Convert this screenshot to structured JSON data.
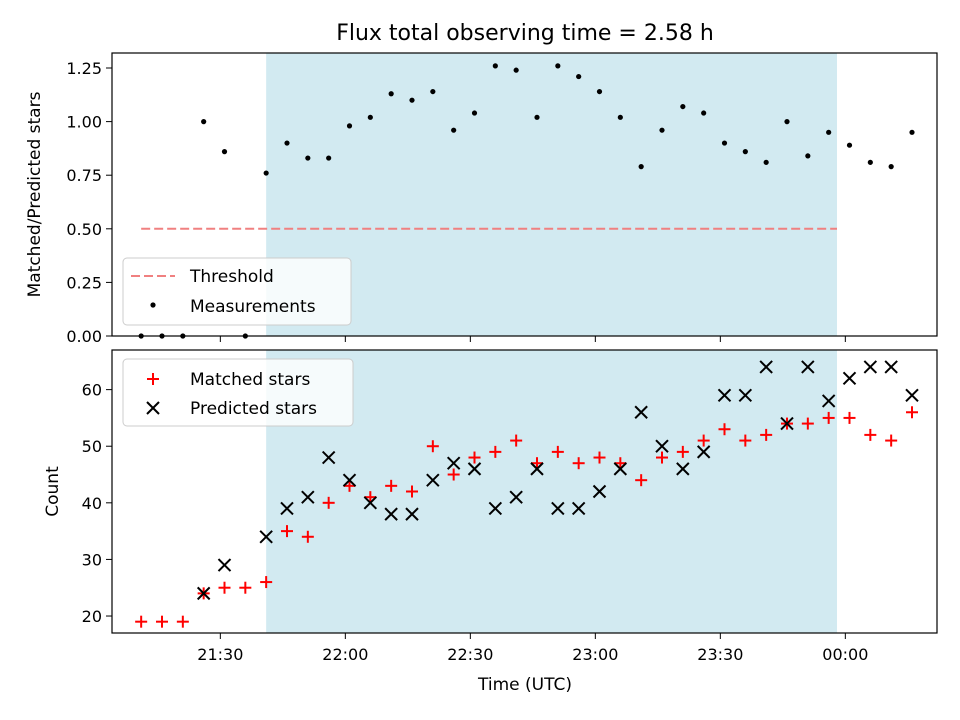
{
  "figure_title": "Flux total observing time = 2.58 h",
  "chart_data": [
    {
      "type": "scatter",
      "title": "Flux total observing time = 2.58 h",
      "xlabel": "",
      "ylabel": "Matched/Predicted stars",
      "ylim": [
        0,
        1.32
      ],
      "yticks": [
        "0.00",
        "0.25",
        "0.50",
        "0.75",
        "1.00",
        "1.25"
      ],
      "xtick_labels_shown": false,
      "shaded_interval": [
        "21:41",
        "23:58"
      ],
      "shade_color": "#add8e6",
      "legend_position": "lower-left",
      "threshold": {
        "name": "Threshold",
        "value": 0.5,
        "x_range": [
          "21:11",
          "23:58"
        ],
        "color": "#f08080",
        "style": "dashed"
      },
      "series": [
        {
          "name": "Measurements",
          "marker": "dot",
          "color": "#000000",
          "points": [
            [
              "21:11",
              0.0
            ],
            [
              "21:16",
              0.0
            ],
            [
              "21:21",
              0.0
            ],
            [
              "21:26",
              1.0
            ],
            [
              "21:31",
              0.86
            ],
            [
              "21:36",
              0.0
            ],
            [
              "21:41",
              0.76
            ],
            [
              "21:46",
              0.9
            ],
            [
              "21:51",
              0.83
            ],
            [
              "21:56",
              0.83
            ],
            [
              "22:01",
              0.98
            ],
            [
              "22:06",
              1.02
            ],
            [
              "22:11",
              1.13
            ],
            [
              "22:16",
              1.1
            ],
            [
              "22:21",
              1.14
            ],
            [
              "22:26",
              0.96
            ],
            [
              "22:31",
              1.04
            ],
            [
              "22:36",
              1.26
            ],
            [
              "22:41",
              1.24
            ],
            [
              "22:46",
              1.02
            ],
            [
              "22:51",
              1.26
            ],
            [
              "22:56",
              1.21
            ],
            [
              "23:01",
              1.14
            ],
            [
              "23:06",
              1.02
            ],
            [
              "23:11",
              0.79
            ],
            [
              "23:16",
              0.96
            ],
            [
              "23:21",
              1.07
            ],
            [
              "23:26",
              1.04
            ],
            [
              "23:31",
              0.9
            ],
            [
              "23:36",
              0.86
            ],
            [
              "23:41",
              0.81
            ],
            [
              "23:46",
              1.0
            ],
            [
              "23:51",
              0.84
            ],
            [
              "23:56",
              0.95
            ],
            [
              "00:01",
              0.89
            ],
            [
              "00:06",
              0.81
            ],
            [
              "00:11",
              0.79
            ],
            [
              "00:16",
              0.95
            ]
          ]
        }
      ]
    },
    {
      "type": "scatter",
      "xlabel": "Time (UTC)",
      "ylabel": "Count",
      "ylim": [
        17,
        67
      ],
      "yticks": [
        "20",
        "30",
        "40",
        "50",
        "60"
      ],
      "xticks": [
        "21:30",
        "22:00",
        "22:30",
        "23:00",
        "23:30",
        "00:00"
      ],
      "shaded_interval": [
        "21:41",
        "23:58"
      ],
      "shade_color": "#add8e6",
      "legend_position": "top-left",
      "series": [
        {
          "name": "Matched stars",
          "marker": "plus",
          "color": "#ff0000",
          "points": [
            [
              "21:11",
              19
            ],
            [
              "21:16",
              19
            ],
            [
              "21:21",
              19
            ],
            [
              "21:26",
              24
            ],
            [
              "21:31",
              25
            ],
            [
              "21:36",
              25
            ],
            [
              "21:41",
              26
            ],
            [
              "21:46",
              35
            ],
            [
              "21:51",
              34
            ],
            [
              "21:56",
              40
            ],
            [
              "22:01",
              43
            ],
            [
              "22:06",
              41
            ],
            [
              "22:11",
              43
            ],
            [
              "22:16",
              42
            ],
            [
              "22:21",
              50
            ],
            [
              "22:26",
              45
            ],
            [
              "22:31",
              48
            ],
            [
              "22:36",
              49
            ],
            [
              "22:41",
              51
            ],
            [
              "22:46",
              47
            ],
            [
              "22:51",
              49
            ],
            [
              "22:56",
              47
            ],
            [
              "23:01",
              48
            ],
            [
              "23:06",
              47
            ],
            [
              "23:11",
              44
            ],
            [
              "23:16",
              48
            ],
            [
              "23:21",
              49
            ],
            [
              "23:26",
              51
            ],
            [
              "23:31",
              53
            ],
            [
              "23:36",
              51
            ],
            [
              "23:41",
              52
            ],
            [
              "23:46",
              54
            ],
            [
              "23:51",
              54
            ],
            [
              "23:56",
              55
            ],
            [
              "00:01",
              55
            ],
            [
              "00:06",
              52
            ],
            [
              "00:11",
              51
            ],
            [
              "00:16",
              56
            ]
          ]
        },
        {
          "name": "Predicted stars",
          "marker": "x",
          "color": "#000000",
          "points": [
            [
              "21:26",
              24
            ],
            [
              "21:31",
              29
            ],
            [
              "21:41",
              34
            ],
            [
              "21:46",
              39
            ],
            [
              "21:51",
              41
            ],
            [
              "21:56",
              48
            ],
            [
              "22:01",
              44
            ],
            [
              "22:06",
              40
            ],
            [
              "22:11",
              38
            ],
            [
              "22:16",
              38
            ],
            [
              "22:21",
              44
            ],
            [
              "22:26",
              47
            ],
            [
              "22:31",
              46
            ],
            [
              "22:36",
              39
            ],
            [
              "22:41",
              41
            ],
            [
              "22:46",
              46
            ],
            [
              "22:51",
              39
            ],
            [
              "22:56",
              39
            ],
            [
              "23:01",
              42
            ],
            [
              "23:06",
              46
            ],
            [
              "23:11",
              56
            ],
            [
              "23:16",
              50
            ],
            [
              "23:21",
              46
            ],
            [
              "23:26",
              49
            ],
            [
              "23:31",
              59
            ],
            [
              "23:36",
              59
            ],
            [
              "23:41",
              64
            ],
            [
              "23:46",
              54
            ],
            [
              "23:51",
              64
            ],
            [
              "23:56",
              58
            ],
            [
              "00:01",
              62
            ],
            [
              "00:06",
              64
            ],
            [
              "00:11",
              64
            ],
            [
              "00:16",
              59
            ]
          ]
        }
      ]
    }
  ]
}
